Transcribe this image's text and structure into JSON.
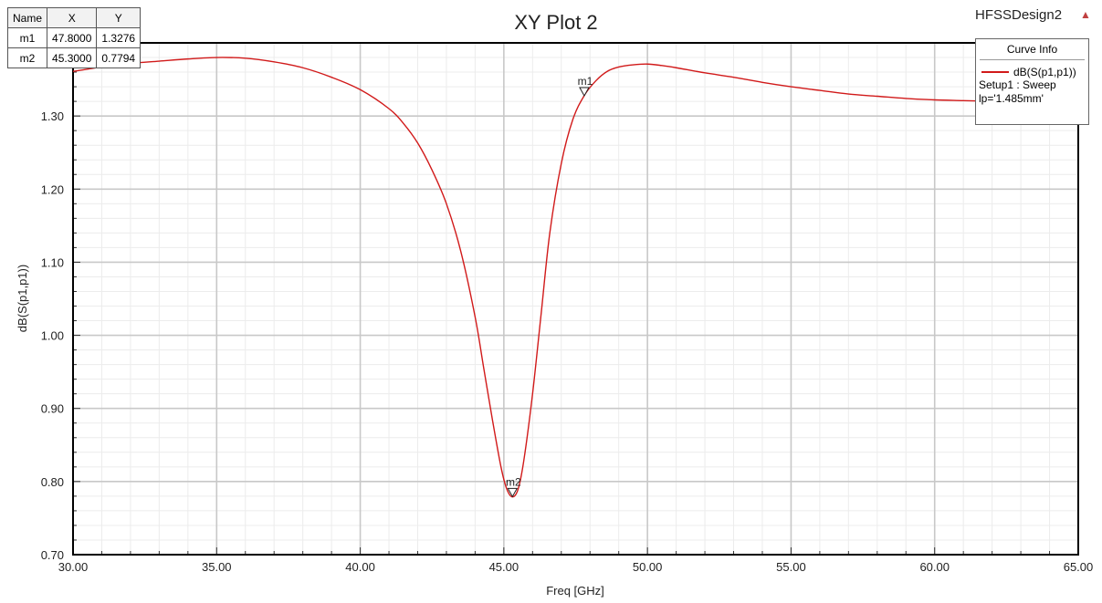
{
  "header": {
    "design_name": "HFSSDesign2"
  },
  "markers_table": {
    "columns": [
      "Name",
      "X",
      "Y"
    ],
    "rows": [
      {
        "name": "m1",
        "x": "47.8000",
        "y": "1.3276"
      },
      {
        "name": "m2",
        "x": "45.3000",
        "y": "0.7794"
      }
    ]
  },
  "curve_info": {
    "title": "Curve Info",
    "entry_label": "dB(S(p1,p1))",
    "setup_line": "Setup1 : Sweep",
    "param_line": "lp='1.485mm'",
    "color": "#d11a1a"
  },
  "chart_data": {
    "type": "line",
    "title": "XY Plot 2",
    "xlabel": "Freq [GHz]",
    "ylabel": "dB(S(p1,p1))",
    "xlim": [
      30,
      65
    ],
    "ylim": [
      0.7,
      1.4
    ],
    "x_ticks": [
      "30.00",
      "35.00",
      "40.00",
      "45.00",
      "50.00",
      "55.00",
      "60.00",
      "65.00"
    ],
    "y_ticks": [
      "0.70",
      "0.80",
      "0.90",
      "1.00",
      "1.10",
      "1.20",
      "1.30"
    ],
    "grid": true,
    "series": [
      {
        "name": "dB(S(p1,p1))",
        "color": "#d11a1a",
        "x": [
          30.0,
          31.0,
          32.0,
          33.0,
          34.0,
          35.0,
          36.0,
          37.0,
          38.0,
          39.0,
          40.0,
          41.0,
          41.5,
          42.0,
          42.5,
          43.0,
          43.5,
          44.0,
          44.3,
          44.6,
          44.9,
          45.1,
          45.3,
          45.5,
          45.7,
          46.0,
          46.3,
          46.6,
          47.0,
          47.4,
          47.8,
          48.2,
          48.6,
          49.0,
          49.5,
          50.0,
          50.5,
          51.0,
          52.0,
          53.0,
          54.0,
          55.0,
          56.0,
          57.0,
          58.0,
          59.0,
          60.0,
          61.0,
          62.0,
          62.5
        ],
        "y": [
          1.361,
          1.367,
          1.372,
          1.375,
          1.378,
          1.38,
          1.379,
          1.374,
          1.366,
          1.353,
          1.336,
          1.31,
          1.29,
          1.263,
          1.226,
          1.18,
          1.115,
          1.025,
          0.955,
          0.885,
          0.82,
          0.79,
          0.779,
          0.79,
          0.83,
          0.92,
          1.03,
          1.14,
          1.235,
          1.295,
          1.328,
          1.348,
          1.361,
          1.367,
          1.37,
          1.371,
          1.369,
          1.366,
          1.359,
          1.353,
          1.346,
          1.34,
          1.335,
          1.33,
          1.327,
          1.324,
          1.322,
          1.321,
          1.32,
          1.32
        ]
      }
    ],
    "markers": [
      {
        "name": "m1",
        "x": 47.8,
        "y": 1.3276
      },
      {
        "name": "m2",
        "x": 45.3,
        "y": 0.7794
      }
    ]
  }
}
